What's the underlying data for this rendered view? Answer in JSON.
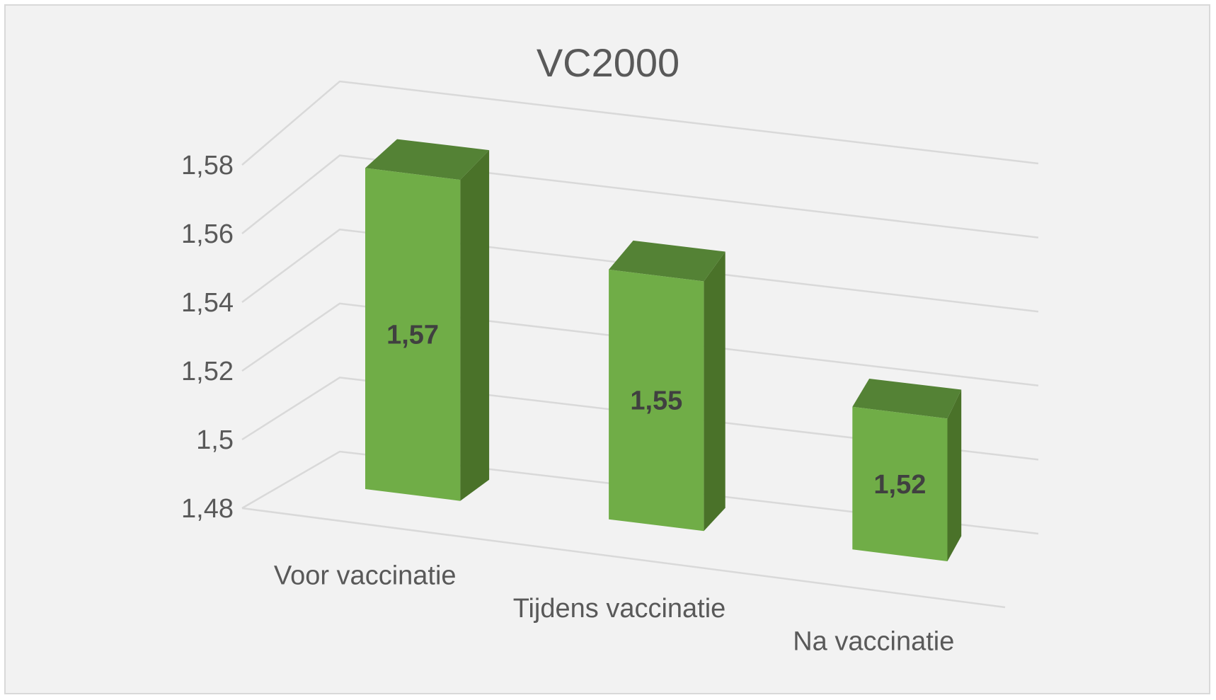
{
  "chart_data": {
    "type": "bar",
    "title": "VC2000",
    "categories": [
      "Voor vaccinatie",
      "Tijdens vaccinatie",
      "Na vaccinatie"
    ],
    "values": [
      1.57,
      1.55,
      1.52
    ],
    "data_labels": [
      "1,57",
      "1,55",
      "1,52"
    ],
    "ylim": [
      1.48,
      1.58
    ],
    "yticks": [
      1.48,
      1.5,
      1.52,
      1.54,
      1.56,
      1.58
    ],
    "ytick_labels": [
      "1,48",
      "1,5",
      "1,52",
      "1,54",
      "1,56",
      "1,58"
    ],
    "xlabel": "",
    "ylabel": "",
    "grid": true,
    "legend": "none",
    "style": "3d-column",
    "colors": {
      "bar_front": "#70ad47",
      "bar_side": "#4a7229",
      "bar_top": "#548235",
      "gridline": "#d9d9d9",
      "background": "#f2f2f2",
      "text": "#595959"
    }
  }
}
